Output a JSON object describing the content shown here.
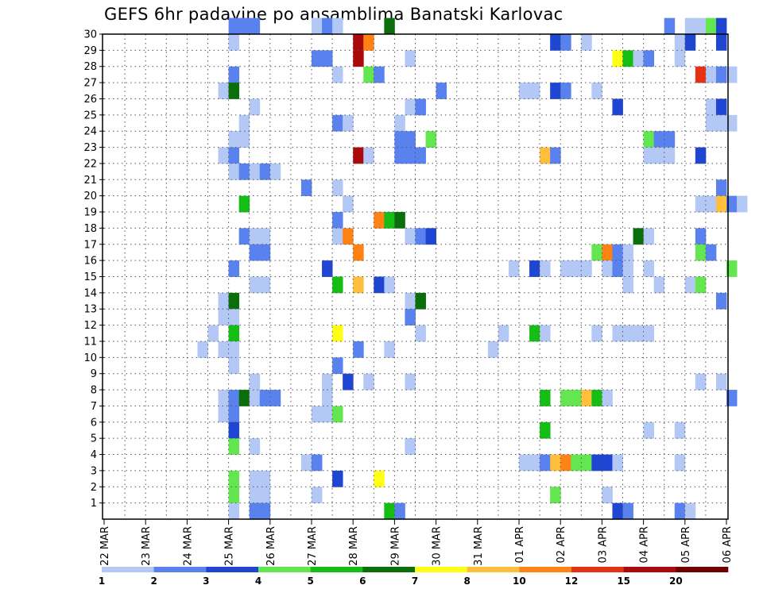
{
  "chart_data": {
    "type": "heatmap",
    "title": "GEFS 6hr padavine po ansamblima Banatski Karlovac",
    "xlabel": "",
    "ylabel": "",
    "x_tick_labels": [
      "22 MAR",
      "23 MAR",
      "24 MAR",
      "25 MAR",
      "26 MAR",
      "27 MAR",
      "28 MAR",
      "29 MAR",
      "30 MAR",
      "31 MAR",
      "01 APR",
      "02 APR",
      "03 APR",
      "04 APR",
      "05 APR",
      "06 APR"
    ],
    "y_tick_labels": [
      "1",
      "2",
      "3",
      "4",
      "5",
      "6",
      "7",
      "8",
      "9",
      "10",
      "11",
      "12",
      "13",
      "14",
      "15",
      "16",
      "17",
      "18",
      "19",
      "20",
      "21",
      "22",
      "23",
      "24",
      "25",
      "26",
      "27",
      "28",
      "29",
      "30"
    ],
    "xlim_days": [
      0,
      15
    ],
    "ylim": [
      0,
      30
    ],
    "grid": "dotted",
    "legend_position": "bottom",
    "colorbar": {
      "ticks": [
        "1",
        "2",
        "3",
        "4",
        "5",
        "6",
        "7",
        "8",
        "10",
        "12",
        "15",
        "20"
      ],
      "colors": [
        "#b4c8f5",
        "#5a82ee",
        "#1e46d2",
        "#64e650",
        "#14be14",
        "#0a6e0a",
        "#ffff14",
        "#ffbe3c",
        "#ff8214",
        "#e63214",
        "#aa0a0a",
        "#6e0000"
      ]
    },
    "cells": [
      [
        30,
        3.0,
        1
      ],
      [
        30,
        3.25,
        1
      ],
      [
        30,
        3.5,
        1
      ],
      [
        30,
        5.0,
        0
      ],
      [
        30,
        5.25,
        1
      ],
      [
        30,
        5.5,
        0
      ],
      [
        30,
        6.75,
        5
      ],
      [
        30,
        13.5,
        1
      ],
      [
        30,
        14.0,
        0
      ],
      [
        30,
        14.25,
        0
      ],
      [
        30,
        14.5,
        3
      ],
      [
        30,
        14.75,
        2
      ],
      [
        29,
        3.0,
        0
      ],
      [
        29,
        6.0,
        10
      ],
      [
        29,
        6.25,
        8
      ],
      [
        29,
        10.75,
        2
      ],
      [
        29,
        11.0,
        1
      ],
      [
        29,
        11.5,
        0
      ],
      [
        29,
        13.75,
        0
      ],
      [
        29,
        14.0,
        2
      ],
      [
        29,
        14.75,
        2
      ],
      [
        28,
        5.0,
        1
      ],
      [
        28,
        5.25,
        1
      ],
      [
        28,
        6.0,
        10
      ],
      [
        28,
        7.25,
        0
      ],
      [
        28,
        12.25,
        6
      ],
      [
        28,
        12.5,
        4
      ],
      [
        28,
        12.75,
        0
      ],
      [
        28,
        13.0,
        1
      ],
      [
        28,
        13.75,
        0
      ],
      [
        27,
        3.0,
        1
      ],
      [
        27,
        5.5,
        0
      ],
      [
        27,
        6.25,
        3
      ],
      [
        27,
        6.5,
        1
      ],
      [
        27,
        14.25,
        9
      ],
      [
        27,
        14.5,
        0
      ],
      [
        27,
        14.75,
        1
      ],
      [
        27,
        15.0,
        0
      ],
      [
        26,
        2.75,
        0
      ],
      [
        26,
        3.0,
        5
      ],
      [
        26,
        8.0,
        1
      ],
      [
        26,
        10.0,
        0
      ],
      [
        26,
        10.25,
        0
      ],
      [
        26,
        10.75,
        2
      ],
      [
        26,
        11.0,
        1
      ],
      [
        26,
        11.75,
        0
      ],
      [
        25,
        3.5,
        0
      ],
      [
        25,
        7.25,
        0
      ],
      [
        25,
        7.5,
        1
      ],
      [
        25,
        12.25,
        2
      ],
      [
        25,
        14.5,
        0
      ],
      [
        25,
        14.75,
        2
      ],
      [
        24,
        3.25,
        0
      ],
      [
        24,
        5.5,
        1
      ],
      [
        24,
        5.75,
        0
      ],
      [
        24,
        7.0,
        0
      ],
      [
        24,
        14.5,
        0
      ],
      [
        24,
        14.75,
        0
      ],
      [
        24,
        15.0,
        0
      ],
      [
        23,
        3.0,
        0
      ],
      [
        23,
        3.25,
        0
      ],
      [
        23,
        7.0,
        1
      ],
      [
        23,
        7.25,
        1
      ],
      [
        23,
        7.75,
        3
      ],
      [
        23,
        13.0,
        3
      ],
      [
        23,
        13.25,
        1
      ],
      [
        23,
        13.5,
        1
      ],
      [
        22,
        2.75,
        0
      ],
      [
        22,
        3.0,
        1
      ],
      [
        22,
        6.0,
        10
      ],
      [
        22,
        6.25,
        0
      ],
      [
        22,
        7.0,
        1
      ],
      [
        22,
        7.25,
        1
      ],
      [
        22,
        7.5,
        1
      ],
      [
        22,
        10.5,
        7
      ],
      [
        22,
        10.75,
        1
      ],
      [
        22,
        13.0,
        0
      ],
      [
        22,
        13.25,
        0
      ],
      [
        22,
        13.5,
        0
      ],
      [
        22,
        14.25,
        2
      ],
      [
        21,
        3.0,
        0
      ],
      [
        21,
        3.25,
        1
      ],
      [
        21,
        3.5,
        0
      ],
      [
        21,
        3.75,
        1
      ],
      [
        21,
        4.0,
        0
      ],
      [
        20,
        4.75,
        1
      ],
      [
        20,
        5.5,
        0
      ],
      [
        20,
        14.75,
        1
      ],
      [
        19,
        3.25,
        4
      ],
      [
        19,
        5.75,
        0
      ],
      [
        19,
        14.25,
        0
      ],
      [
        19,
        14.5,
        0
      ],
      [
        19,
        14.75,
        7
      ],
      [
        19,
        15.0,
        1
      ],
      [
        19,
        15.25,
        0
      ],
      [
        18,
        5.5,
        1
      ],
      [
        18,
        6.5,
        8
      ],
      [
        18,
        6.75,
        4
      ],
      [
        18,
        7.0,
        5
      ],
      [
        17,
        3.25,
        1
      ],
      [
        17,
        3.5,
        0
      ],
      [
        17,
        3.75,
        0
      ],
      [
        17,
        5.5,
        0
      ],
      [
        17,
        5.75,
        8
      ],
      [
        17,
        7.25,
        0
      ],
      [
        17,
        7.5,
        1
      ],
      [
        17,
        7.75,
        2
      ],
      [
        17,
        12.75,
        5
      ],
      [
        17,
        13.0,
        0
      ],
      [
        17,
        14.25,
        1
      ],
      [
        16,
        3.5,
        1
      ],
      [
        16,
        3.75,
        1
      ],
      [
        16,
        6.0,
        8
      ],
      [
        16,
        11.75,
        3
      ],
      [
        16,
        12.0,
        8
      ],
      [
        16,
        12.25,
        1
      ],
      [
        16,
        12.5,
        0
      ],
      [
        16,
        14.25,
        3
      ],
      [
        16,
        14.5,
        1
      ],
      [
        15,
        3.0,
        1
      ],
      [
        15,
        5.25,
        2
      ],
      [
        15,
        9.75,
        0
      ],
      [
        15,
        10.25,
        2
      ],
      [
        15,
        10.5,
        0
      ],
      [
        15,
        11.0,
        0
      ],
      [
        15,
        11.25,
        0
      ],
      [
        15,
        11.5,
        0
      ],
      [
        15,
        12.0,
        0
      ],
      [
        15,
        12.25,
        1
      ],
      [
        15,
        12.5,
        0
      ],
      [
        15,
        13.0,
        0
      ],
      [
        15,
        15.0,
        3
      ],
      [
        14,
        3.5,
        0
      ],
      [
        14,
        3.75,
        0
      ],
      [
        14,
        5.5,
        4
      ],
      [
        14,
        6.0,
        7
      ],
      [
        14,
        6.5,
        2
      ],
      [
        14,
        6.75,
        0
      ],
      [
        14,
        12.5,
        0
      ],
      [
        14,
        13.25,
        0
      ],
      [
        14,
        14.0,
        0
      ],
      [
        14,
        14.25,
        3
      ],
      [
        13,
        2.75,
        0
      ],
      [
        13,
        3.0,
        5
      ],
      [
        13,
        7.25,
        0
      ],
      [
        13,
        7.5,
        5
      ],
      [
        13,
        14.75,
        1
      ],
      [
        12,
        2.75,
        0
      ],
      [
        12,
        3.0,
        0
      ],
      [
        12,
        7.25,
        1
      ],
      [
        11,
        2.5,
        0
      ],
      [
        11,
        3.0,
        4
      ],
      [
        11,
        5.5,
        6
      ],
      [
        11,
        7.5,
        0
      ],
      [
        11,
        9.5,
        0
      ],
      [
        11,
        10.25,
        4
      ],
      [
        11,
        10.5,
        0
      ],
      [
        11,
        11.75,
        0
      ],
      [
        11,
        12.25,
        0
      ],
      [
        11,
        12.5,
        0
      ],
      [
        11,
        12.75,
        0
      ],
      [
        11,
        13.0,
        0
      ],
      [
        10,
        2.25,
        0
      ],
      [
        10,
        2.75,
        0
      ],
      [
        10,
        3.0,
        0
      ],
      [
        10,
        6.0,
        1
      ],
      [
        10,
        6.75,
        0
      ],
      [
        10,
        9.25,
        0
      ],
      [
        9,
        3.0,
        0
      ],
      [
        9,
        5.5,
        1
      ],
      [
        8,
        3.5,
        0
      ],
      [
        8,
        5.25,
        0
      ],
      [
        8,
        5.75,
        2
      ],
      [
        8,
        6.25,
        0
      ],
      [
        8,
        7.25,
        0
      ],
      [
        8,
        14.25,
        0
      ],
      [
        8,
        14.75,
        0
      ],
      [
        7,
        2.75,
        0
      ],
      [
        7,
        3.0,
        1
      ],
      [
        7,
        3.25,
        5
      ],
      [
        7,
        3.5,
        0
      ],
      [
        7,
        3.75,
        1
      ],
      [
        7,
        4.0,
        1
      ],
      [
        7,
        5.25,
        0
      ],
      [
        7,
        10.5,
        4
      ],
      [
        7,
        11.0,
        3
      ],
      [
        7,
        11.25,
        3
      ],
      [
        7,
        11.5,
        7
      ],
      [
        7,
        11.75,
        4
      ],
      [
        7,
        12.0,
        0
      ],
      [
        7,
        15.0,
        1
      ],
      [
        6,
        2.75,
        0
      ],
      [
        6,
        3.0,
        1
      ],
      [
        6,
        5.0,
        0
      ],
      [
        6,
        5.25,
        0
      ],
      [
        6,
        5.5,
        3
      ],
      [
        5,
        3.0,
        2
      ],
      [
        5,
        10.5,
        4
      ],
      [
        5,
        13.0,
        0
      ],
      [
        5,
        13.75,
        0
      ],
      [
        4,
        3.0,
        3
      ],
      [
        4,
        3.5,
        0
      ],
      [
        4,
        7.25,
        0
      ],
      [
        3,
        4.75,
        0
      ],
      [
        4,
        7.25,
        0
      ],
      [
        3,
        5.0,
        1
      ],
      [
        3,
        10.0,
        0
      ],
      [
        3,
        10.25,
        0
      ],
      [
        3,
        10.5,
        1
      ],
      [
        3,
        10.75,
        7
      ],
      [
        3,
        11.0,
        8
      ],
      [
        3,
        11.25,
        3
      ],
      [
        3,
        11.5,
        3
      ],
      [
        3,
        11.75,
        2
      ],
      [
        3,
        12.0,
        2
      ],
      [
        3,
        12.25,
        0
      ],
      [
        3,
        13.75,
        0
      ],
      [
        2,
        3.0,
        3
      ],
      [
        2,
        3.5,
        0
      ],
      [
        2,
        3.75,
        0
      ],
      [
        2,
        5.5,
        2
      ],
      [
        2,
        6.5,
        6
      ],
      [
        1,
        3.0,
        3
      ],
      [
        1,
        3.5,
        0
      ],
      [
        1,
        3.75,
        0
      ],
      [
        1,
        5.0,
        0
      ],
      [
        1,
        10.75,
        3
      ],
      [
        1,
        12.0,
        0
      ],
      [
        0,
        3.0,
        0
      ],
      [
        0,
        3.5,
        1
      ],
      [
        0,
        3.75,
        1
      ],
      [
        0,
        6.75,
        4
      ],
      [
        0,
        7.0,
        1
      ],
      [
        0,
        12.25,
        2
      ],
      [
        0,
        12.5,
        1
      ],
      [
        0,
        13.75,
        1
      ],
      [
        0,
        14.0,
        0
      ]
    ]
  }
}
